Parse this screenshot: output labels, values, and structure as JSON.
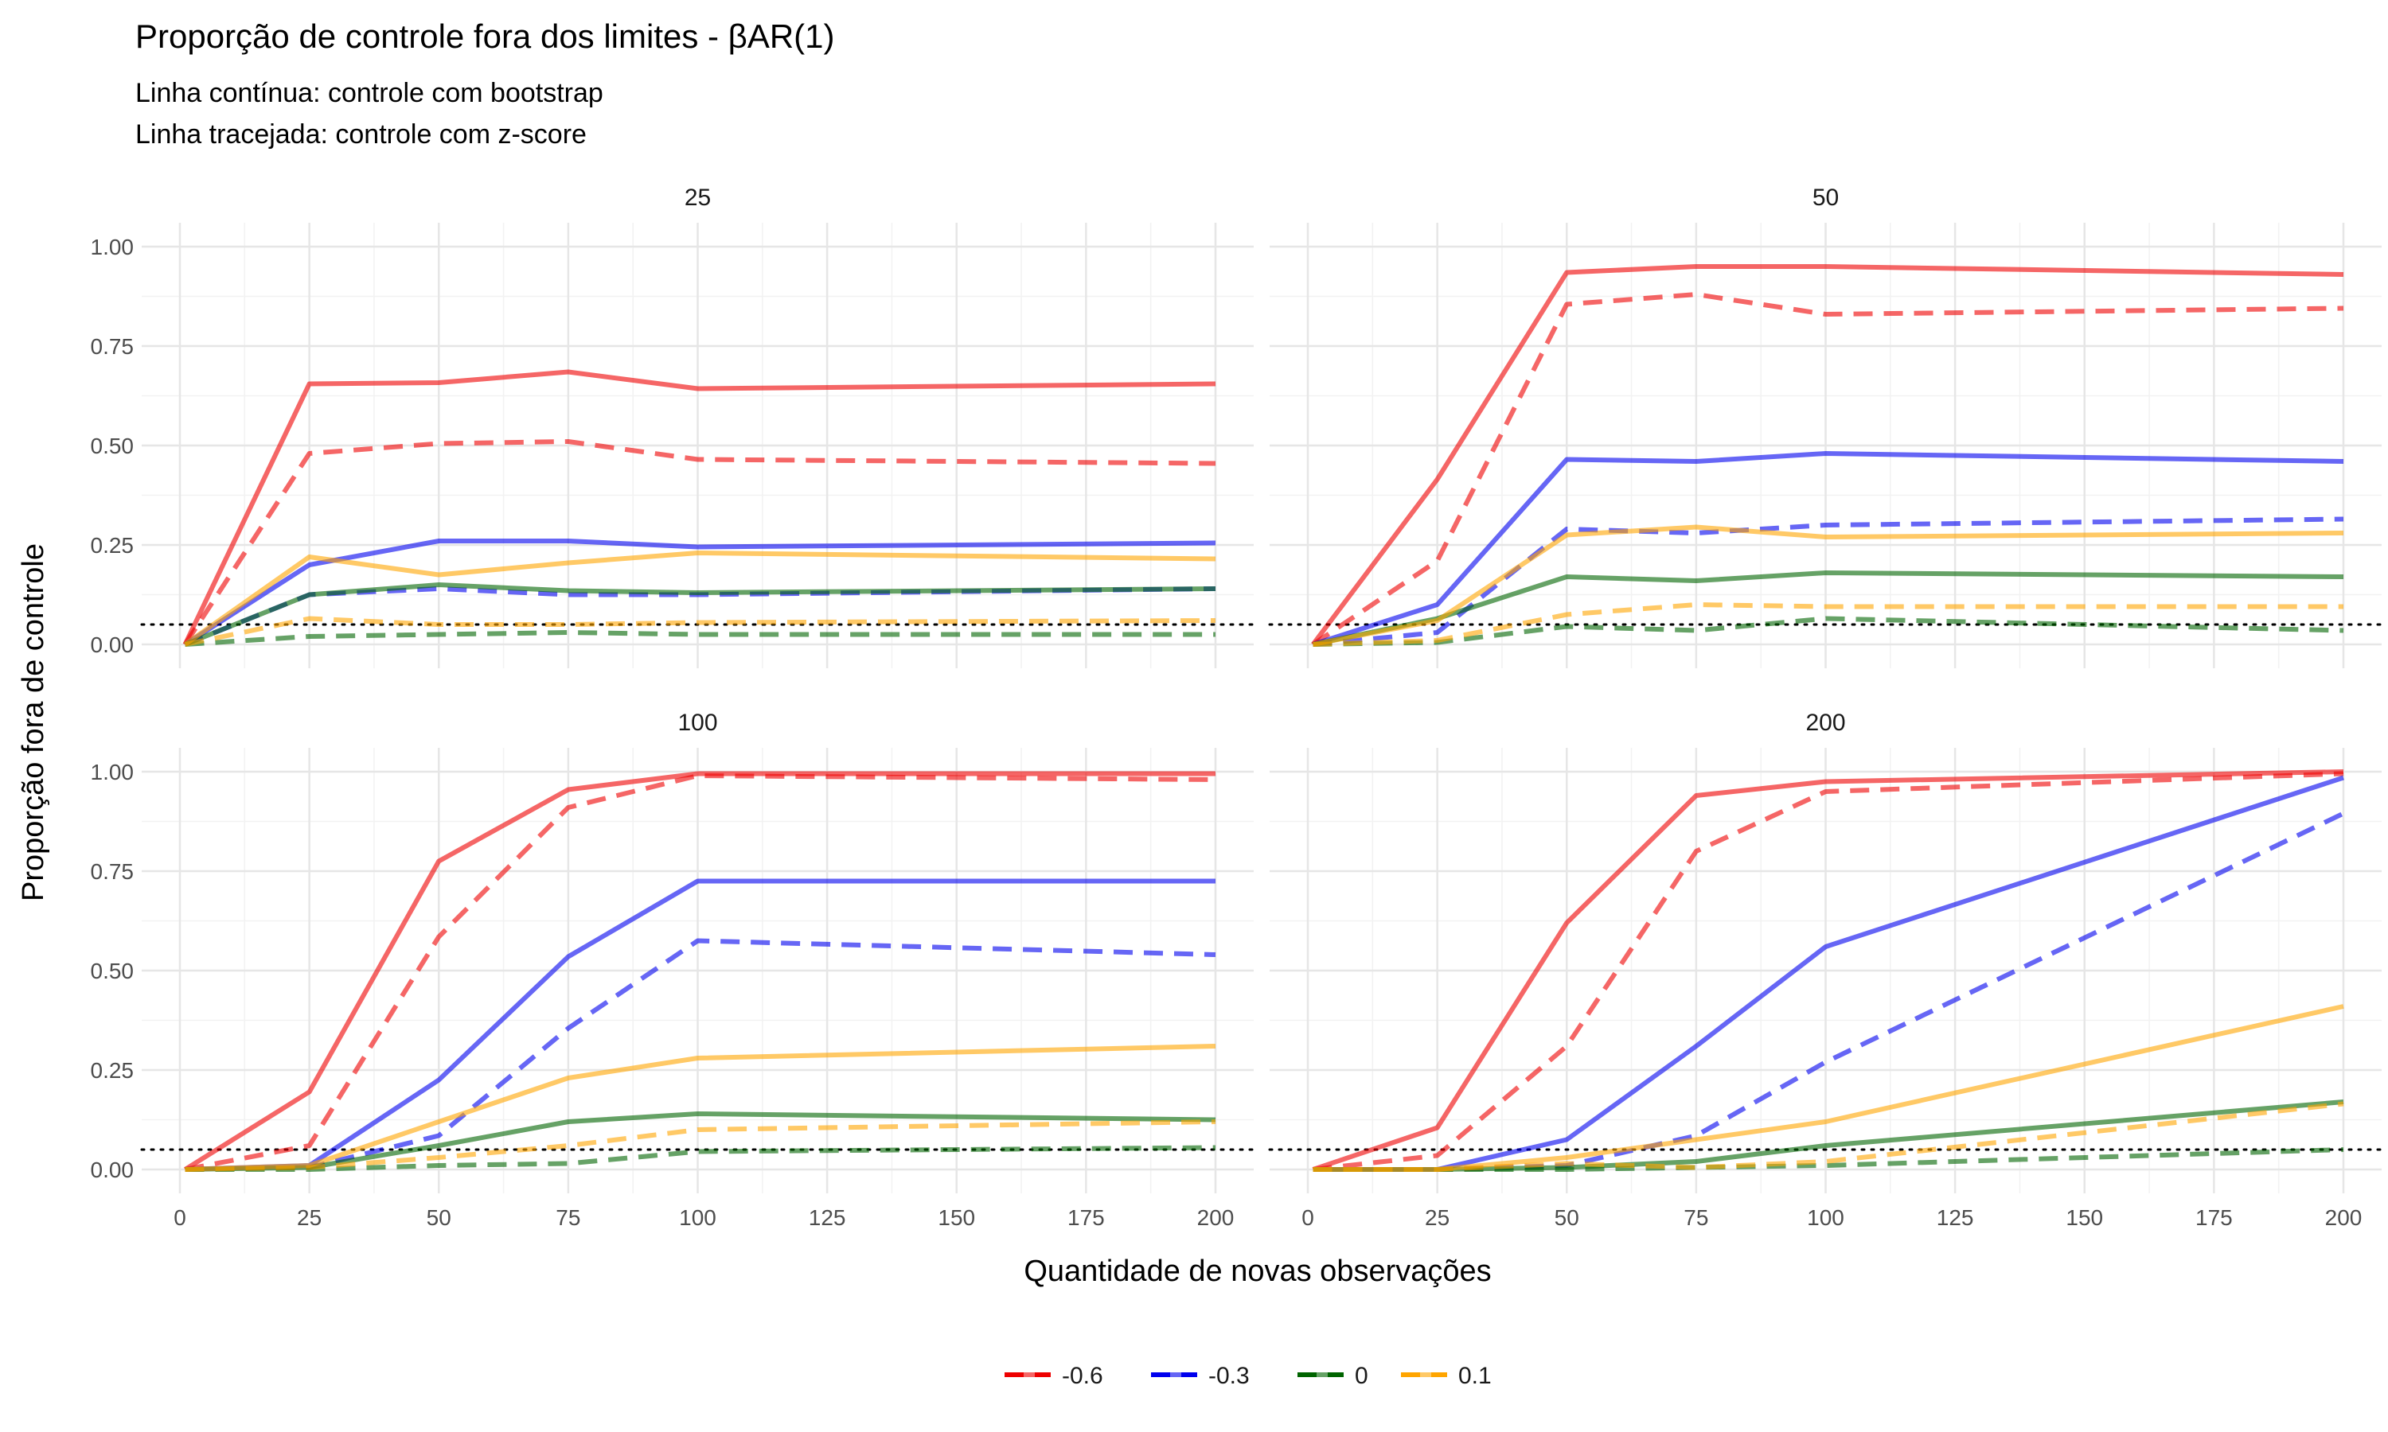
{
  "chart_data": {
    "type": "line",
    "title": "Proporção de controle fora dos limites - βAR(1)",
    "subtitle_lines": [
      "Linha contínua: controle com bootstrap",
      "Linha tracejada: controle com z-score"
    ],
    "xlabel": "Quantidade de novas observações",
    "ylabel": "Proporção fora de controle",
    "xlim": [
      0,
      200
    ],
    "ylim": [
      0,
      1
    ],
    "x_ticks": [
      0,
      25,
      50,
      75,
      100,
      125,
      150,
      175,
      200
    ],
    "y_ticks": [
      0,
      0.25,
      0.5,
      0.75,
      1
    ],
    "y_tick_labels": [
      "0.00",
      "0.25",
      "0.50",
      "0.75",
      "1.00"
    ],
    "reference_line": {
      "y": 0.05,
      "style": "dotted"
    },
    "grid": true,
    "legend_position": "bottom",
    "x": [
      1,
      25,
      50,
      75,
      100,
      200
    ],
    "series_colors": {
      "-0.6": "#ee0000",
      "-0.3": "#0000ee",
      "0": "#006400",
      "0.1": "#ffa500"
    },
    "line_styles": {
      "bootstrap": "solid",
      "z-score": "dashed"
    },
    "legend": [
      {
        "label": "-0.6",
        "color": "#ee0000"
      },
      {
        "label": "-0.3",
        "color": "#0000ee"
      },
      {
        "label": "0",
        "color": "#006400"
      },
      {
        "label": "0.1",
        "color": "#ffa500"
      }
    ],
    "panels": [
      {
        "label": "25",
        "series": [
          {
            "name": "-0.6",
            "method": "bootstrap",
            "values": [
              0.0,
              0.655,
              0.658,
              0.685,
              0.643,
              0.655
            ]
          },
          {
            "name": "-0.6",
            "method": "z-score",
            "values": [
              0.0,
              0.48,
              0.505,
              0.51,
              0.465,
              0.455
            ]
          },
          {
            "name": "-0.3",
            "method": "bootstrap",
            "values": [
              0.0,
              0.2,
              0.26,
              0.26,
              0.245,
              0.255
            ]
          },
          {
            "name": "-0.3",
            "method": "z-score",
            "values": [
              0.0,
              0.125,
              0.14,
              0.125,
              0.125,
              0.14
            ]
          },
          {
            "name": "0",
            "method": "bootstrap",
            "values": [
              0.0,
              0.125,
              0.15,
              0.135,
              0.13,
              0.14
            ]
          },
          {
            "name": "0",
            "method": "z-score",
            "values": [
              0.0,
              0.02,
              0.025,
              0.03,
              0.025,
              0.025
            ]
          },
          {
            "name": "0.1",
            "method": "bootstrap",
            "values": [
              0.0,
              0.22,
              0.175,
              0.205,
              0.23,
              0.215
            ]
          },
          {
            "name": "0.1",
            "method": "z-score",
            "values": [
              0.0,
              0.065,
              0.05,
              0.05,
              0.055,
              0.06
            ]
          }
        ]
      },
      {
        "label": "50",
        "series": [
          {
            "name": "-0.6",
            "method": "bootstrap",
            "values": [
              0.0,
              0.415,
              0.935,
              0.95,
              0.95,
              0.93
            ]
          },
          {
            "name": "-0.6",
            "method": "z-score",
            "values": [
              0.0,
              0.21,
              0.855,
              0.88,
              0.83,
              0.845
            ]
          },
          {
            "name": "-0.3",
            "method": "bootstrap",
            "values": [
              0.0,
              0.1,
              0.465,
              0.46,
              0.48,
              0.46
            ]
          },
          {
            "name": "-0.3",
            "method": "z-score",
            "values": [
              0.0,
              0.03,
              0.29,
              0.28,
              0.3,
              0.315
            ]
          },
          {
            "name": "0",
            "method": "bootstrap",
            "values": [
              0.0,
              0.065,
              0.17,
              0.16,
              0.18,
              0.17
            ]
          },
          {
            "name": "0",
            "method": "z-score",
            "values": [
              0.0,
              0.005,
              0.045,
              0.035,
              0.065,
              0.035
            ]
          },
          {
            "name": "0.1",
            "method": "bootstrap",
            "values": [
              0.0,
              0.06,
              0.275,
              0.295,
              0.27,
              0.28
            ]
          },
          {
            "name": "0.1",
            "method": "z-score",
            "values": [
              0.0,
              0.01,
              0.075,
              0.1,
              0.095,
              0.095
            ]
          }
        ]
      },
      {
        "label": "100",
        "series": [
          {
            "name": "-0.6",
            "method": "bootstrap",
            "values": [
              0.0,
              0.195,
              0.775,
              0.955,
              0.995,
              0.995
            ]
          },
          {
            "name": "-0.6",
            "method": "z-score",
            "values": [
              0.0,
              0.06,
              0.585,
              0.91,
              0.99,
              0.98
            ]
          },
          {
            "name": "-0.3",
            "method": "bootstrap",
            "values": [
              0.0,
              0.01,
              0.225,
              0.535,
              0.725,
              0.725
            ]
          },
          {
            "name": "-0.3",
            "method": "z-score",
            "values": [
              0.0,
              0.005,
              0.085,
              0.355,
              0.575,
              0.54
            ]
          },
          {
            "name": "0",
            "method": "bootstrap",
            "values": [
              0.0,
              0.005,
              0.06,
              0.12,
              0.14,
              0.125
            ]
          },
          {
            "name": "0",
            "method": "z-score",
            "values": [
              0.0,
              0.0,
              0.01,
              0.015,
              0.045,
              0.055
            ]
          },
          {
            "name": "0.1",
            "method": "bootstrap",
            "values": [
              0.0,
              0.01,
              0.12,
              0.23,
              0.28,
              0.31
            ]
          },
          {
            "name": "0.1",
            "method": "z-score",
            "values": [
              0.0,
              0.005,
              0.03,
              0.06,
              0.1,
              0.12
            ]
          }
        ]
      },
      {
        "label": "200",
        "series": [
          {
            "name": "-0.6",
            "method": "bootstrap",
            "values": [
              0.0,
              0.105,
              0.62,
              0.94,
              0.975,
              1.0
            ]
          },
          {
            "name": "-0.6",
            "method": "z-score",
            "values": [
              0.0,
              0.035,
              0.31,
              0.8,
              0.95,
              0.995
            ]
          },
          {
            "name": "-0.3",
            "method": "bootstrap",
            "values": [
              0.0,
              0.0,
              0.075,
              0.31,
              0.56,
              0.985
            ]
          },
          {
            "name": "-0.3",
            "method": "z-score",
            "values": [
              0.0,
              0.0,
              0.01,
              0.085,
              0.27,
              0.895
            ]
          },
          {
            "name": "0",
            "method": "bootstrap",
            "values": [
              0.0,
              0.0,
              0.005,
              0.02,
              0.06,
              0.17
            ]
          },
          {
            "name": "0",
            "method": "z-score",
            "values": [
              0.0,
              0.0,
              0.0,
              0.005,
              0.01,
              0.05
            ]
          },
          {
            "name": "0.1",
            "method": "bootstrap",
            "values": [
              0.0,
              0.0,
              0.03,
              0.075,
              0.12,
              0.41
            ]
          },
          {
            "name": "0.1",
            "method": "z-score",
            "values": [
              0.0,
              0.0,
              0.015,
              0.005,
              0.02,
              0.165
            ]
          }
        ]
      }
    ]
  }
}
